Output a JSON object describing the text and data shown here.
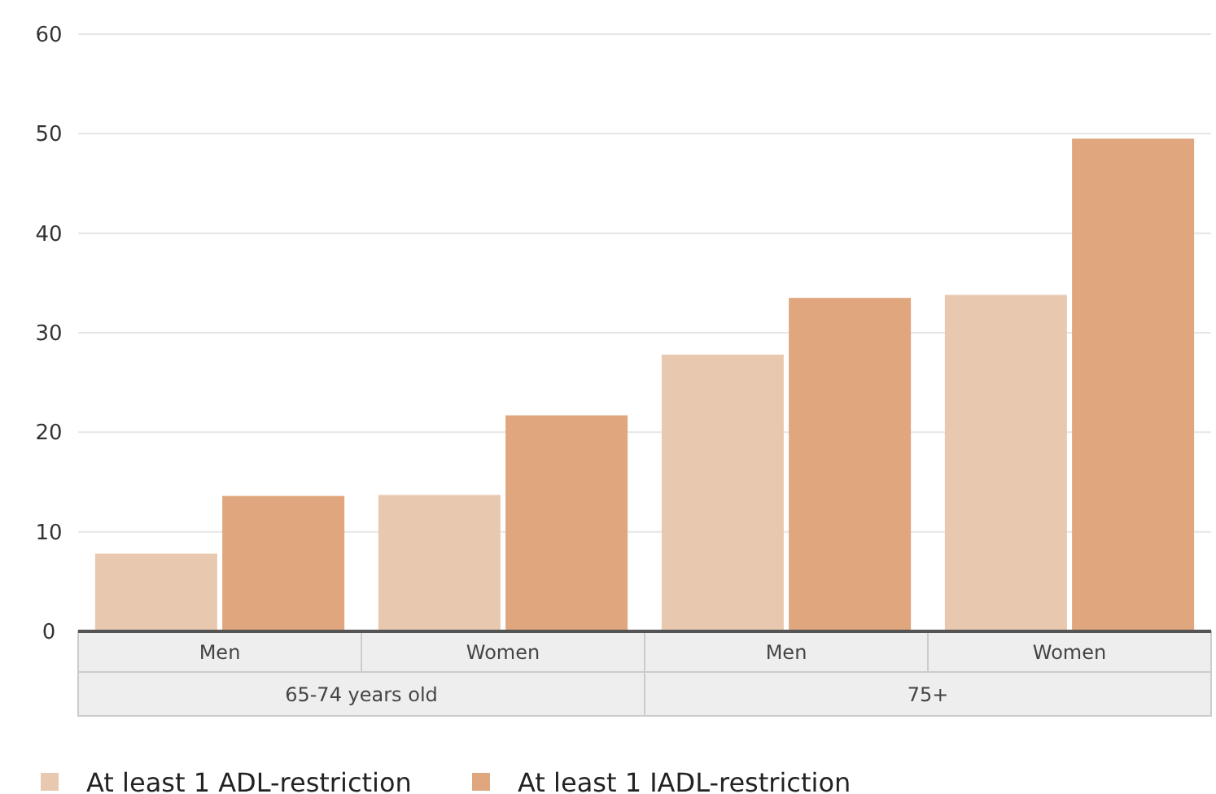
{
  "chart_data": {
    "type": "bar",
    "categories": [
      "Men",
      "Women",
      "Men",
      "Women"
    ],
    "series": [
      {
        "name": "At least 1 ADL-restriction",
        "color": "#e8c9b0",
        "values": [
          7.8,
          13.7,
          27.8,
          33.8
        ]
      },
      {
        "name": "At least 1 IADL-restriction",
        "color": "#e0a67e",
        "values": [
          13.6,
          21.7,
          33.5,
          49.5
        ]
      }
    ],
    "annotations": [
      "65-74 years old",
      "75+"
    ],
    "ylim": [
      0,
      60
    ],
    "yticks": [
      0,
      10,
      20,
      30,
      40,
      50,
      60
    ],
    "grid": "y",
    "legend": "bottom"
  }
}
